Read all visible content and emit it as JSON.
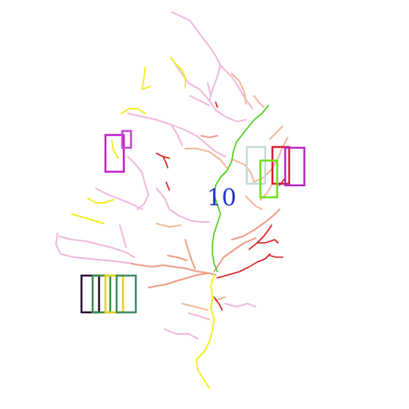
{
  "figure": {
    "label": "10",
    "label_color": "#2233cc",
    "background": "#ffffff"
  },
  "colors": {
    "pink": "#f0b8dc",
    "peach": "#f4b89a",
    "salmon": "#ee9c88",
    "red": "#d81818",
    "yellow": "#f2ee2a",
    "green": "#44cc10"
  },
  "boxes": [
    {
      "name": "magenta-box-large",
      "color": "#c21fc8"
    },
    {
      "name": "magenta-box-small",
      "color": "#c845d4"
    },
    {
      "name": "light-cyan-box",
      "color": "#c4dcd8"
    },
    {
      "name": "crimson-box",
      "color": "#d4203c"
    },
    {
      "name": "purple-box",
      "color": "#b628c4"
    },
    {
      "name": "lime-box",
      "color": "#6ee016"
    },
    {
      "name": "dark-purple-box",
      "color": "#2a1030"
    },
    {
      "name": "green-box",
      "color": "#3c8c50"
    },
    {
      "name": "yellow-box",
      "color": "#e8d020"
    },
    {
      "name": "teal-green-box",
      "color": "#3c8c64"
    }
  ]
}
